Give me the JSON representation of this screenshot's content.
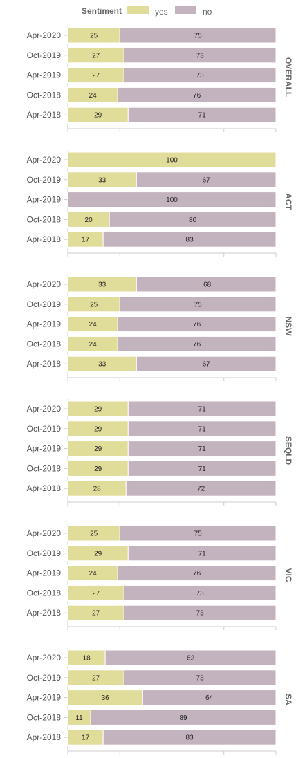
{
  "legend": {
    "title": "Sentiment",
    "items": [
      {
        "label": "yes",
        "color": "#e0dc99"
      },
      {
        "label": "no",
        "color": "#c3b3bf"
      }
    ]
  },
  "chart_data": {
    "type": "bar",
    "stacked": true,
    "orientation": "horizontal",
    "categories": [
      "Apr-2020",
      "Oct-2019",
      "Apr-2019",
      "Oct-2018",
      "Apr-2018"
    ],
    "xlim": [
      0,
      100
    ],
    "legend_position": "top",
    "series_colors": {
      "yes": "#e0dc99",
      "no": "#c3b3bf"
    },
    "panels": [
      {
        "label": "OVERALL",
        "series": [
          {
            "name": "yes",
            "values": [
              25,
              27,
              27,
              24,
              29
            ]
          },
          {
            "name": "no",
            "values": [
              75,
              73,
              73,
              76,
              71
            ]
          }
        ]
      },
      {
        "label": "ACT",
        "series": [
          {
            "name": "yes",
            "values": [
              100,
              33,
              0,
              20,
              17
            ]
          },
          {
            "name": "no",
            "values": [
              0,
              67,
              100,
              80,
              83
            ]
          }
        ]
      },
      {
        "label": "NSW",
        "series": [
          {
            "name": "yes",
            "values": [
              33,
              25,
              24,
              24,
              33
            ]
          },
          {
            "name": "no",
            "values": [
              68,
              75,
              76,
              76,
              67
            ]
          }
        ]
      },
      {
        "label": "SEQLD",
        "series": [
          {
            "name": "yes",
            "values": [
              29,
              29,
              29,
              29,
              28
            ]
          },
          {
            "name": "no",
            "values": [
              71,
              71,
              71,
              71,
              72
            ]
          }
        ]
      },
      {
        "label": "VIC",
        "series": [
          {
            "name": "yes",
            "values": [
              25,
              29,
              24,
              27,
              27
            ]
          },
          {
            "name": "no",
            "values": [
              75,
              71,
              76,
              73,
              73
            ]
          }
        ]
      },
      {
        "label": "SA",
        "series": [
          {
            "name": "yes",
            "values": [
              18,
              27,
              36,
              11,
              17
            ]
          },
          {
            "name": "no",
            "values": [
              82,
              73,
              64,
              89,
              83
            ]
          }
        ]
      }
    ]
  }
}
